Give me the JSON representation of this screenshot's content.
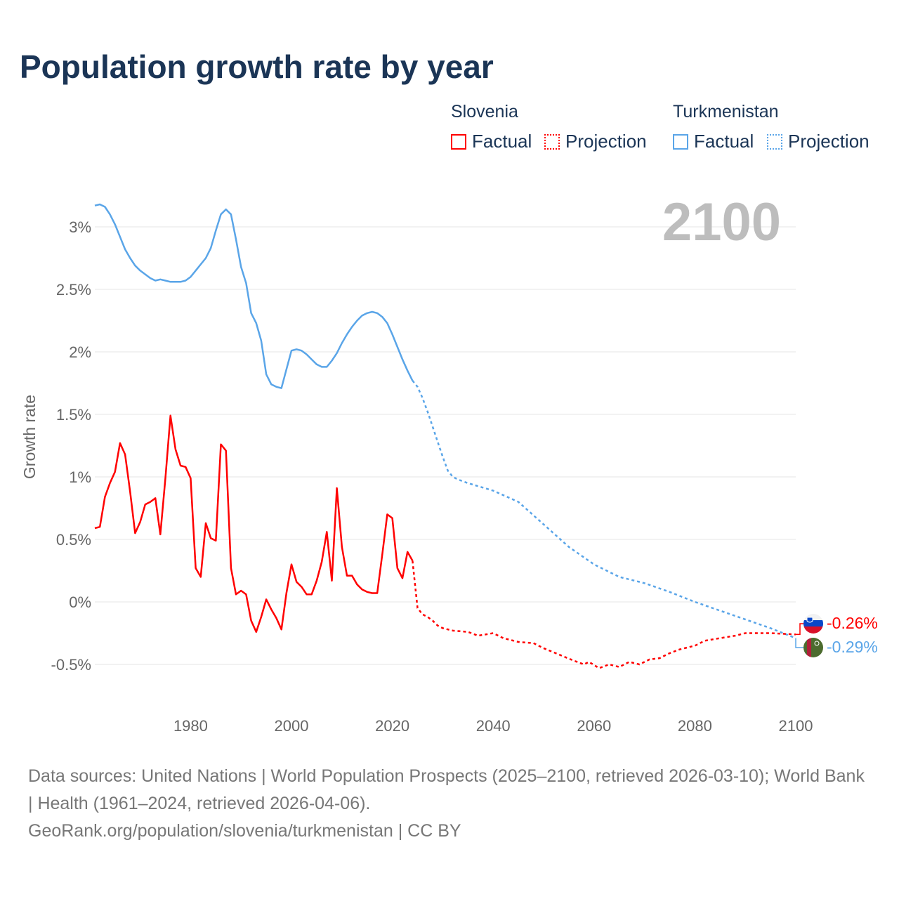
{
  "title": "Population growth rate by year",
  "legend": {
    "groups": [
      {
        "country": "Slovenia",
        "factual": "Factual",
        "projection": "Projection",
        "color": "#ff0000"
      },
      {
        "country": "Turkmenistan",
        "factual": "Factual",
        "projection": "Projection",
        "color": "#5aa5e8"
      }
    ]
  },
  "year_display": "2100",
  "footer": {
    "sources": "Data sources: United Nations | World Population Prospects (2025–2100, retrieved 2026-03-10); World Bank | Health (1961–2024, retrieved 2026-04-06).",
    "link": "GeoRank.org/population/slovenia/turkmenistan | CC BY"
  },
  "chart_data": {
    "type": "line",
    "title": "Population growth rate by year",
    "xlabel": "",
    "ylabel": "Growth rate",
    "xlim": [
      1961,
      2100
    ],
    "ylim": [
      -0.5,
      3
    ],
    "x_ticks": [
      1980,
      2000,
      2020,
      2040,
      2060,
      2080,
      2100
    ],
    "y_ticks": [
      {
        "v": -0.5,
        "label": "-0.5%"
      },
      {
        "v": 0,
        "label": "0%"
      },
      {
        "v": 0.5,
        "label": "0.5%"
      },
      {
        "v": 1,
        "label": "1%"
      },
      {
        "v": 1.5,
        "label": "1.5%"
      },
      {
        "v": 2,
        "label": "2%"
      },
      {
        "v": 2.5,
        "label": "2.5%"
      },
      {
        "v": 3,
        "label": "3%"
      }
    ],
    "grid": true,
    "legend_position": "top-right",
    "series": [
      {
        "name": "Turkmenistan",
        "kind": "factual",
        "color": "#5aa5e8",
        "x": [
          1961,
          1962,
          1963,
          1964,
          1965,
          1966,
          1967,
          1968,
          1969,
          1970,
          1971,
          1972,
          1973,
          1974,
          1975,
          1976,
          1977,
          1978,
          1979,
          1980,
          1981,
          1982,
          1983,
          1984,
          1985,
          1986,
          1987,
          1988,
          1989,
          1990,
          1991,
          1992,
          1993,
          1994,
          1995,
          1996,
          1997,
          1998,
          1999,
          2000,
          2001,
          2002,
          2003,
          2004,
          2005,
          2006,
          2007,
          2008,
          2009,
          2010,
          2011,
          2012,
          2013,
          2014,
          2015,
          2016,
          2017,
          2018,
          2019,
          2020,
          2021,
          2022,
          2023,
          2024
        ],
        "y": [
          3.17,
          3.18,
          3.16,
          3.1,
          3.02,
          2.92,
          2.82,
          2.75,
          2.69,
          2.65,
          2.62,
          2.59,
          2.57,
          2.58,
          2.57,
          2.56,
          2.56,
          2.56,
          2.57,
          2.6,
          2.65,
          2.7,
          2.75,
          2.83,
          2.97,
          3.1,
          3.14,
          3.1,
          2.9,
          2.68,
          2.55,
          2.31,
          2.23,
          2.09,
          1.82,
          1.74,
          1.72,
          1.71,
          1.86,
          2.01,
          2.02,
          2.01,
          1.98,
          1.94,
          1.9,
          1.88,
          1.88,
          1.93,
          1.99,
          2.07,
          2.14,
          2.2,
          2.25,
          2.29,
          2.31,
          2.32,
          2.31,
          2.28,
          2.23,
          2.14,
          2.04,
          1.94,
          1.85,
          1.77
        ]
      },
      {
        "name": "Turkmenistan",
        "kind": "projection",
        "color": "#5aa5e8",
        "x": [
          2024,
          2025,
          2026,
          2027,
          2028,
          2029,
          2030,
          2031,
          2032,
          2033,
          2035,
          2040,
          2045,
          2050,
          2055,
          2060,
          2065,
          2070,
          2075,
          2080,
          2085,
          2090,
          2095,
          2100
        ],
        "y": [
          1.77,
          1.72,
          1.63,
          1.52,
          1.4,
          1.28,
          1.16,
          1.05,
          1.0,
          0.98,
          0.95,
          0.89,
          0.8,
          0.62,
          0.44,
          0.3,
          0.2,
          0.15,
          0.08,
          0.0,
          -0.07,
          -0.14,
          -0.21,
          -0.29
        ]
      },
      {
        "name": "Slovenia",
        "kind": "factual",
        "color": "#ff0000",
        "x": [
          1961,
          1962,
          1963,
          1964,
          1965,
          1966,
          1967,
          1968,
          1969,
          1970,
          1971,
          1972,
          1973,
          1974,
          1975,
          1976,
          1977,
          1978,
          1979,
          1980,
          1981,
          1982,
          1983,
          1984,
          1985,
          1986,
          1987,
          1988,
          1989,
          1990,
          1991,
          1992,
          1993,
          1994,
          1995,
          1996,
          1997,
          1998,
          1999,
          2000,
          2001,
          2002,
          2003,
          2004,
          2005,
          2006,
          2007,
          2008,
          2009,
          2010,
          2011,
          2012,
          2013,
          2014,
          2015,
          2016,
          2017,
          2018,
          2019,
          2020,
          2021,
          2022,
          2023,
          2024
        ],
        "y": [
          0.59,
          0.6,
          0.84,
          0.95,
          1.04,
          1.27,
          1.18,
          0.88,
          0.55,
          0.64,
          0.78,
          0.8,
          0.83,
          0.54,
          0.99,
          1.49,
          1.22,
          1.09,
          1.08,
          0.99,
          0.27,
          0.2,
          0.63,
          0.51,
          0.49,
          1.26,
          1.21,
          0.27,
          0.06,
          0.09,
          0.06,
          -0.15,
          -0.24,
          -0.12,
          0.02,
          -0.06,
          -0.13,
          -0.22,
          0.07,
          0.3,
          0.16,
          0.12,
          0.06,
          0.06,
          0.17,
          0.32,
          0.56,
          0.17,
          0.91,
          0.44,
          0.21,
          0.21,
          0.14,
          0.1,
          0.08,
          0.07,
          0.07,
          0.38,
          0.7,
          0.67,
          0.27,
          0.19,
          0.4,
          0.33
        ]
      },
      {
        "name": "Slovenia",
        "kind": "projection",
        "color": "#ff0000",
        "x": [
          2024,
          2025,
          2026,
          2027,
          2028,
          2029,
          2030,
          2032,
          2035,
          2037,
          2040,
          2042,
          2045,
          2048,
          2050,
          2053,
          2056,
          2058,
          2059,
          2061,
          2063,
          2065,
          2067,
          2069,
          2071,
          2073,
          2075,
          2077,
          2080,
          2082,
          2085,
          2088,
          2090,
          2095,
          2100
        ],
        "y": [
          0.33,
          -0.05,
          -0.1,
          -0.12,
          -0.15,
          -0.19,
          -0.21,
          -0.23,
          -0.24,
          -0.27,
          -0.25,
          -0.29,
          -0.32,
          -0.33,
          -0.37,
          -0.42,
          -0.47,
          -0.5,
          -0.48,
          -0.53,
          -0.5,
          -0.52,
          -0.48,
          -0.5,
          -0.46,
          -0.45,
          -0.41,
          -0.38,
          -0.35,
          -0.31,
          -0.29,
          -0.27,
          -0.25,
          -0.25,
          -0.26
        ]
      }
    ],
    "end_labels": [
      {
        "country": "Slovenia",
        "label": "-0.26%",
        "color": "#ff0000",
        "flag": "slovenia-flag"
      },
      {
        "country": "Turkmenistan",
        "label": "-0.29%",
        "color": "#5aa5e8",
        "flag": "turkmenistan-flag"
      }
    ]
  }
}
